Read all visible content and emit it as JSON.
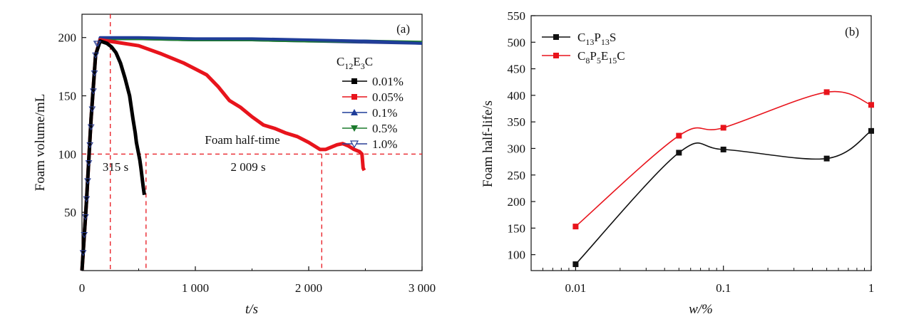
{
  "chart_data": [
    {
      "type": "line",
      "panel_label": "(a)",
      "xlabel": "t/s",
      "ylabel": "Foam volume/mL",
      "xlim": [
        0,
        3000
      ],
      "ylim": [
        0,
        220
      ],
      "xticks": [
        0,
        1000,
        2000,
        3000
      ],
      "xtick_labels": [
        "0",
        "1 000",
        "2 000",
        "3 000"
      ],
      "yticks": [
        50,
        100,
        150,
        200
      ],
      "ytick_labels": [
        "50",
        "100",
        "150",
        "200"
      ],
      "legend": {
        "title": "C12E3C",
        "title_main": "C",
        "title_sub1": "12",
        "title_mid": "E",
        "title_sub2": "3",
        "title_end": "C",
        "position": "right"
      },
      "series": [
        {
          "name": "0.01%",
          "color": "#000000",
          "marker": "square",
          "x": [
            0,
            40,
            80,
            120,
            160,
            220,
            260,
            300,
            340,
            380,
            420,
            450,
            470,
            480,
            490,
            500,
            510,
            520,
            530,
            540,
            550
          ],
          "y": [
            0,
            60,
            130,
            185,
            197,
            195,
            192,
            187,
            178,
            165,
            150,
            130,
            118,
            110,
            105,
            100,
            95,
            88,
            80,
            72,
            65
          ]
        },
        {
          "name": "0.05%",
          "color": "#e8141c",
          "marker": "square",
          "x": [
            0,
            40,
            80,
            120,
            160,
            300,
            500,
            700,
            800,
            900,
            1000,
            1100,
            1200,
            1300,
            1400,
            1500,
            1600,
            1700,
            1800,
            1900,
            2000,
            2100,
            2150,
            2200,
            2250,
            2300,
            2350,
            2400,
            2450,
            2470,
            2480,
            2490
          ],
          "y": [
            0,
            60,
            130,
            185,
            198,
            196,
            193,
            186,
            182,
            178,
            173,
            168,
            158,
            146,
            140,
            132,
            125,
            122,
            118,
            115,
            110,
            104,
            104,
            106,
            108,
            109,
            107,
            104,
            102,
            100,
            88,
            86
          ]
        },
        {
          "name": "0.1%",
          "color": "#1f3d99",
          "marker": "triangle-up",
          "x": [
            0,
            40,
            80,
            120,
            160,
            500,
            1000,
            1500,
            2000,
            2500,
            3000
          ],
          "y": [
            0,
            60,
            130,
            185,
            200,
            200,
            199,
            199,
            198,
            197,
            195
          ]
        },
        {
          "name": "0.5%",
          "color": "#1b7a2c",
          "marker": "triangle-down",
          "x": [
            0,
            40,
            80,
            120,
            160,
            500,
            1000,
            1500,
            2000,
            2500,
            3000
          ],
          "y": [
            0,
            60,
            130,
            185,
            199,
            199,
            198,
            198,
            197,
            197,
            196
          ]
        },
        {
          "name": "1.0%",
          "color": "#2a3f95",
          "marker": "triangle-down-open",
          "x": [
            0,
            40,
            80,
            120,
            160,
            500,
            1000,
            1500,
            2000,
            2500,
            3000
          ],
          "y": [
            0,
            60,
            130,
            185,
            199,
            199,
            198,
            198,
            197,
            196,
            195
          ]
        }
      ],
      "annotations": {
        "half_time_label": "Foam half-time",
        "t1_label": "315 s",
        "t2_label": "2 009 s",
        "half_line_y": 100,
        "v_line_1_x": 250,
        "v_line_2_x": 565,
        "v_line_3_x": 2115
      }
    },
    {
      "type": "line",
      "panel_label": "(b)",
      "xlabel": "w/%",
      "ylabel": "Foam half-life/s",
      "xscale": "log",
      "xlim": [
        0.005,
        1
      ],
      "ylim": [
        70,
        550
      ],
      "xticks": [
        0.01,
        0.1,
        1
      ],
      "xtick_labels": [
        "0.01",
        "0.1",
        "1"
      ],
      "yticks": [
        100,
        150,
        200,
        250,
        300,
        350,
        400,
        450,
        500,
        550
      ],
      "ytick_labels": [
        "100",
        "150",
        "200",
        "250",
        "300",
        "350",
        "400",
        "450",
        "500",
        "550"
      ],
      "legend": {
        "position": "top-left"
      },
      "series": [
        {
          "name": "C13P13S",
          "name_parts": [
            "C",
            "13",
            "P",
            "13",
            "S"
          ],
          "color": "#111111",
          "marker": "square",
          "x": [
            0.01,
            0.05,
            0.1,
            0.5,
            1
          ],
          "y": [
            82,
            292,
            298,
            281,
            333
          ]
        },
        {
          "name": "C8P5E15C",
          "name_parts": [
            "C",
            "8",
            "P",
            "5",
            "E",
            "15",
            "C"
          ],
          "color": "#e8141c",
          "marker": "square",
          "x": [
            0.01,
            0.05,
            0.1,
            0.5,
            1
          ],
          "y": [
            153,
            324,
            339,
            406,
            382
          ]
        }
      ]
    }
  ]
}
